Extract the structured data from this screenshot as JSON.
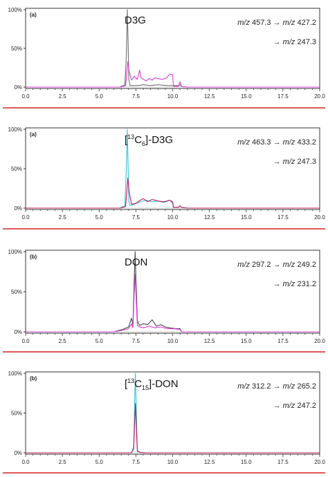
{
  "chart_data": [
    {
      "type": "line",
      "panel_label": "(a)",
      "compound_label": "D3G",
      "transition_line1": "m/z 457.3 → m/z 427.2",
      "transition_line2": "→ m/z 247.3",
      "xlim": [
        0,
        20
      ],
      "ylim": [
        0,
        100
      ],
      "x_ticks": [
        "0.0",
        "2.5",
        "5.0",
        "7.5",
        "10.0",
        "12.5",
        "15.0",
        "17.5",
        "20.0"
      ],
      "y_ticks": [
        "0%",
        "50%",
        "100%"
      ],
      "series": [
        {
          "color": "#6f6f6f",
          "x": [
            0,
            6.4,
            6.75,
            6.85,
            6.92,
            6.97,
            7.02,
            7.1,
            7.3,
            7.6,
            8.0,
            8.5,
            9.0,
            9.6,
            10.0,
            10.4,
            10.5,
            10.6,
            11,
            20
          ],
          "y": [
            0,
            0,
            3,
            40,
            100,
            60,
            10,
            2,
            2,
            2,
            3,
            2,
            3,
            2,
            2,
            2,
            3,
            1,
            0,
            0
          ]
        },
        {
          "color": "#d63bd6",
          "x": [
            0,
            6.45,
            6.8,
            6.95,
            7.05,
            7.2,
            7.4,
            7.6,
            7.75,
            7.85,
            8.0,
            8.2,
            8.4,
            8.6,
            8.8,
            9.0,
            9.3,
            9.6,
            9.8,
            10.0,
            10.05,
            10.4,
            10.5,
            10.6,
            11,
            20
          ],
          "y": [
            0,
            0,
            2,
            33,
            20,
            9,
            14,
            10,
            22,
            12,
            10,
            8,
            11,
            9,
            12,
            11,
            10,
            12,
            17,
            16,
            1,
            1,
            7,
            1,
            0,
            0
          ]
        }
      ]
    },
    {
      "type": "line",
      "panel_label": "(a)",
      "compound_label": "[13C6]-D3G",
      "compound_label_parts": [
        "[",
        "13",
        "C",
        "6",
        "]-D3G"
      ],
      "transition_line1": "m/z 463.3 → m/z 433.2",
      "transition_line2": "→ m/z 247.3",
      "xlim": [
        0,
        20
      ],
      "ylim": [
        0,
        100
      ],
      "x_ticks": [
        "0.0",
        "2.5",
        "5.0",
        "7.5",
        "10.0",
        "12.5",
        "15.0",
        "17.5",
        "20.0"
      ],
      "y_ticks": [
        "0%",
        "50%",
        "100%"
      ],
      "series": [
        {
          "color": "#2fc4d8",
          "x": [
            0,
            6.4,
            6.75,
            6.85,
            6.92,
            6.97,
            7.02,
            7.1,
            7.4,
            7.8,
            8.2,
            8.6,
            9.0,
            9.4,
            9.8,
            10.0,
            10.05,
            10.4,
            10.5,
            10.6,
            11,
            20
          ],
          "y": [
            0,
            0,
            3,
            50,
            100,
            55,
            8,
            3,
            5,
            8,
            10,
            8,
            9,
            7,
            10,
            6,
            1,
            1,
            3,
            1,
            0,
            0
          ]
        },
        {
          "color": "#c2185b",
          "x": [
            0,
            6.45,
            6.8,
            6.95,
            7.05,
            7.2,
            7.5,
            7.8,
            8.0,
            8.3,
            8.6,
            9.0,
            9.4,
            9.8,
            10.0,
            10.05,
            10.4,
            10.5,
            10.6,
            11,
            20
          ],
          "y": [
            0,
            0,
            2,
            38,
            20,
            5,
            6,
            10,
            12,
            8,
            11,
            9,
            8,
            10,
            8,
            1,
            1,
            3,
            1,
            0,
            0
          ]
        }
      ]
    },
    {
      "type": "line",
      "panel_label": "(b)",
      "compound_label": "DON",
      "transition_line1": "m/z 297.2 → m/z 249.2",
      "transition_line2": "→ m/z 231.2",
      "xlim": [
        0,
        20
      ],
      "ylim": [
        0,
        100
      ],
      "x_ticks": [
        "0.0",
        "2.5",
        "5.0",
        "7.5",
        "10.0",
        "12.5",
        "15.0",
        "17.5",
        "20.0"
      ],
      "y_ticks": [
        "0%",
        "50%",
        "100%"
      ],
      "series": [
        {
          "color": "#444444",
          "x": [
            0,
            6.0,
            6.6,
            7.0,
            7.2,
            7.3,
            7.38,
            7.45,
            7.52,
            7.6,
            7.75,
            8.0,
            8.3,
            8.6,
            8.9,
            9.2,
            9.5,
            9.8,
            10.2,
            10.5,
            10.6,
            20
          ],
          "y": [
            0,
            0,
            3,
            6,
            17,
            8,
            60,
            100,
            55,
            14,
            8,
            10,
            9,
            15,
            7,
            9,
            6,
            5,
            4,
            4,
            0,
            0
          ]
        },
        {
          "color": "#d63bd6",
          "x": [
            0,
            6.0,
            6.6,
            7.0,
            7.2,
            7.3,
            7.38,
            7.45,
            7.52,
            7.6,
            7.75,
            8.0,
            8.4,
            8.8,
            9.2,
            9.6,
            10.0,
            10.5,
            10.6,
            20
          ],
          "y": [
            0,
            0,
            2,
            4,
            10,
            5,
            45,
            72,
            40,
            8,
            6,
            5,
            7,
            5,
            6,
            4,
            4,
            3,
            0,
            0
          ]
        }
      ]
    },
    {
      "type": "line",
      "panel_label": "(b)",
      "compound_label": "[13C15]-DON",
      "compound_label_parts": [
        "[",
        "13",
        "C",
        "15",
        "]-DON"
      ],
      "transition_line1": "m/z 312.2 → m/z 265.2",
      "transition_line2": "→ m/z 247.2",
      "xlim": [
        0,
        20
      ],
      "ylim": [
        0,
        100
      ],
      "x_ticks": [
        "0.0",
        "2.5",
        "5.0",
        "7.5",
        "10.0",
        "12.5",
        "15.0",
        "17.5",
        "20.0"
      ],
      "y_ticks": [
        "0%",
        "50%",
        "100%"
      ],
      "series": [
        {
          "color": "#2fc4d8",
          "x": [
            0,
            7.2,
            7.35,
            7.42,
            7.47,
            7.52,
            7.6,
            7.8,
            8.2,
            20
          ],
          "y": [
            0,
            0,
            8,
            70,
            100,
            60,
            3,
            0.5,
            0,
            0
          ]
        },
        {
          "color": "#c2185b",
          "x": [
            0,
            7.2,
            7.35,
            7.42,
            7.47,
            7.52,
            7.6,
            7.8,
            8.2,
            20
          ],
          "y": [
            0,
            0,
            5,
            40,
            62,
            35,
            2,
            0.5,
            0,
            0
          ]
        }
      ]
    }
  ]
}
